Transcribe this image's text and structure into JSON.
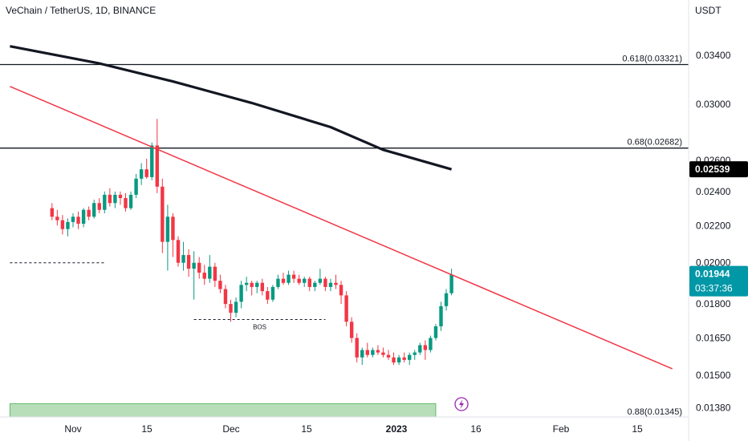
{
  "header": {
    "symbol_title": "VeChain / TetherUS, 1D, BINANCE",
    "currency": "USDT"
  },
  "colors": {
    "up": "#089981",
    "down": "#f23645",
    "trendline": "#f23645",
    "moving_average": "#131722",
    "horizontal_lines": "#131722",
    "demand_zone": "#a5d6a7",
    "last_price_tag": "#0097a7",
    "ma_tag": "#000000",
    "axis_text": "#131722"
  },
  "icons": {
    "event_marker": "lightning-icon"
  },
  "chart_data": {
    "type": "candlestick",
    "title": "VeChain / TetherUS, 1D, BINANCE",
    "y_axis": {
      "label": "USDT",
      "scale": "log",
      "range": [
        0.0134,
        0.0371
      ],
      "tick_labels": [
        "0.03400",
        "0.03000",
        "0.02600",
        "0.02400",
        "0.02200",
        "0.02000",
        "0.01800",
        "0.01650",
        "0.01500",
        "0.01380"
      ]
    },
    "x_axis": {
      "tick_labels": [
        "Nov",
        "15",
        "Dec",
        "15",
        "2023",
        "16",
        "Feb",
        "15"
      ]
    },
    "dates": [
      "2022-10-28",
      "2022-10-29",
      "2022-10-30",
      "2022-10-31",
      "2022-11-01",
      "2022-11-02",
      "2022-11-03",
      "2022-11-04",
      "2022-11-05",
      "2022-11-06",
      "2022-11-07",
      "2022-11-08",
      "2022-11-09",
      "2022-11-10",
      "2022-11-11",
      "2022-11-12",
      "2022-11-13",
      "2022-11-14",
      "2022-11-15",
      "2022-11-16",
      "2022-11-17",
      "2022-11-18",
      "2022-11-19",
      "2022-11-20",
      "2022-11-21",
      "2022-11-22",
      "2022-11-23",
      "2022-11-24",
      "2022-11-25",
      "2022-11-26",
      "2022-11-27",
      "2022-11-28",
      "2022-11-29",
      "2022-11-30",
      "2022-12-01",
      "2022-12-02",
      "2022-12-03",
      "2022-12-04",
      "2022-12-05",
      "2022-12-06",
      "2022-12-07",
      "2022-12-08",
      "2022-12-09",
      "2022-12-10",
      "2022-12-11",
      "2022-12-12",
      "2022-12-13",
      "2022-12-14",
      "2022-12-15",
      "2022-12-16",
      "2022-12-17",
      "2022-12-18",
      "2022-12-19",
      "2022-12-20",
      "2022-12-21",
      "2022-12-22",
      "2022-12-23",
      "2022-12-24",
      "2022-12-25",
      "2022-12-26",
      "2022-12-27",
      "2022-12-28",
      "2022-12-29",
      "2022-12-30",
      "2022-12-31",
      "2023-01-01",
      "2023-01-02",
      "2023-01-03",
      "2023-01-04",
      "2023-01-05",
      "2023-01-06",
      "2023-01-07",
      "2023-01-08",
      "2023-01-09",
      "2023-01-10",
      "2023-01-11",
      "2023-01-12"
    ],
    "candles": [
      [
        0.023,
        0.0233,
        0.0223,
        0.0225
      ],
      [
        0.0225,
        0.0229,
        0.022,
        0.0223
      ],
      [
        0.0223,
        0.0226,
        0.0215,
        0.0218
      ],
      [
        0.0218,
        0.0224,
        0.0214,
        0.0222
      ],
      [
        0.0222,
        0.0227,
        0.0219,
        0.0225
      ],
      [
        0.0225,
        0.0228,
        0.0218,
        0.0221
      ],
      [
        0.0221,
        0.023,
        0.0219,
        0.0229
      ],
      [
        0.0229,
        0.0231,
        0.0223,
        0.0225
      ],
      [
        0.0225,
        0.0235,
        0.0224,
        0.0233
      ],
      [
        0.0233,
        0.0236,
        0.0227,
        0.0229
      ],
      [
        0.0229,
        0.024,
        0.0227,
        0.0238
      ],
      [
        0.0238,
        0.0242,
        0.0231,
        0.0233
      ],
      [
        0.0233,
        0.024,
        0.023,
        0.0238
      ],
      [
        0.0238,
        0.024,
        0.0232,
        0.0236
      ],
      [
        0.0236,
        0.0239,
        0.0228,
        0.023
      ],
      [
        0.023,
        0.024,
        0.0229,
        0.0238
      ],
      [
        0.0238,
        0.0251,
        0.0236,
        0.0248
      ],
      [
        0.0248,
        0.0258,
        0.0244,
        0.0254
      ],
      [
        0.0254,
        0.0261,
        0.0248,
        0.0249
      ],
      [
        0.0249,
        0.0272,
        0.0247,
        0.027
      ],
      [
        0.027,
        0.0289,
        0.0239,
        0.0243
      ],
      [
        0.0243,
        0.0248,
        0.0205,
        0.0211
      ],
      [
        0.0211,
        0.0232,
        0.0196,
        0.0225
      ],
      [
        0.0225,
        0.0227,
        0.0203,
        0.0212
      ],
      [
        0.0212,
        0.0214,
        0.0198,
        0.02
      ],
      [
        0.02,
        0.0211,
        0.0196,
        0.0204
      ],
      [
        0.0204,
        0.0207,
        0.0193,
        0.0197
      ],
      [
        0.0197,
        0.0206,
        0.0182,
        0.02
      ],
      [
        0.02,
        0.0203,
        0.0192,
        0.0195
      ],
      [
        0.0195,
        0.0199,
        0.0189,
        0.0192
      ],
      [
        0.0192,
        0.0204,
        0.019,
        0.0198
      ],
      [
        0.0198,
        0.02,
        0.0188,
        0.0191
      ],
      [
        0.0191,
        0.0194,
        0.0185,
        0.0187
      ],
      [
        0.0187,
        0.0189,
        0.0178,
        0.018
      ],
      [
        0.018,
        0.0182,
        0.0172,
        0.0176
      ],
      [
        0.0176,
        0.0183,
        0.0174,
        0.0181
      ],
      [
        0.0181,
        0.0191,
        0.0178,
        0.0189
      ],
      [
        0.0189,
        0.0193,
        0.0186,
        0.019
      ],
      [
        0.019,
        0.0191,
        0.0184,
        0.0188
      ],
      [
        0.0188,
        0.0191,
        0.0185,
        0.019
      ],
      [
        0.019,
        0.0192,
        0.0184,
        0.0186
      ],
      [
        0.0186,
        0.0188,
        0.018,
        0.0182
      ],
      [
        0.0182,
        0.0189,
        0.0181,
        0.0188
      ],
      [
        0.0188,
        0.0194,
        0.0187,
        0.0192
      ],
      [
        0.0192,
        0.0195,
        0.0189,
        0.019
      ],
      [
        0.019,
        0.0196,
        0.0189,
        0.0194
      ],
      [
        0.0194,
        0.0196,
        0.019,
        0.0192
      ],
      [
        0.0192,
        0.0194,
        0.0189,
        0.019
      ],
      [
        0.019,
        0.0193,
        0.0188,
        0.0192
      ],
      [
        0.0192,
        0.0193,
        0.0186,
        0.0188
      ],
      [
        0.0188,
        0.0191,
        0.0186,
        0.019
      ],
      [
        0.019,
        0.0197,
        0.0189,
        0.0192
      ],
      [
        0.0192,
        0.0193,
        0.0186,
        0.0188
      ],
      [
        0.0188,
        0.0192,
        0.0186,
        0.019
      ],
      [
        0.019,
        0.0194,
        0.0187,
        0.0189
      ],
      [
        0.0189,
        0.0191,
        0.018,
        0.0184
      ],
      [
        0.0184,
        0.0186,
        0.017,
        0.0172
      ],
      [
        0.0172,
        0.0174,
        0.0163,
        0.0165
      ],
      [
        0.0165,
        0.0167,
        0.0155,
        0.0157
      ],
      [
        0.0157,
        0.0161,
        0.0154,
        0.016
      ],
      [
        0.016,
        0.0163,
        0.0157,
        0.0158
      ],
      [
        0.0158,
        0.0161,
        0.0157,
        0.016
      ],
      [
        0.016,
        0.0162,
        0.0158,
        0.0159
      ],
      [
        0.0159,
        0.0161,
        0.0157,
        0.0158
      ],
      [
        0.0158,
        0.016,
        0.0156,
        0.0157
      ],
      [
        0.0157,
        0.0159,
        0.0154,
        0.0155
      ],
      [
        0.0155,
        0.0158,
        0.0154,
        0.0157
      ],
      [
        0.0157,
        0.0159,
        0.0155,
        0.0156
      ],
      [
        0.0156,
        0.0159,
        0.0154,
        0.0158
      ],
      [
        0.0158,
        0.016,
        0.0156,
        0.0159
      ],
      [
        0.0159,
        0.0163,
        0.0158,
        0.0162
      ],
      [
        0.0162,
        0.0164,
        0.0156,
        0.016
      ],
      [
        0.016,
        0.0166,
        0.0159,
        0.0165
      ],
      [
        0.0165,
        0.0171,
        0.0164,
        0.017
      ],
      [
        0.017,
        0.0181,
        0.0168,
        0.0179
      ],
      [
        0.0179,
        0.0187,
        0.0177,
        0.0185
      ],
      [
        0.0185,
        0.0197,
        0.0184,
        0.0194
      ]
    ],
    "moving_average": {
      "dates": [
        "2022-10-20",
        "2022-11-06",
        "2022-11-20",
        "2022-12-05",
        "2022-12-20",
        "2022-12-30",
        "2023-01-12"
      ],
      "values": [
        0.0348,
        0.0333,
        0.0318,
        0.0301,
        0.0283,
        0.0267,
        0.0254
      ]
    },
    "trendline": {
      "dates": [
        "2022-10-20",
        "2023-02-23"
      ],
      "values": [
        0.0314,
        0.01525
      ]
    },
    "horizontal_levels": [
      {
        "label": "0.618(0.03321)",
        "value": 0.03321
      },
      {
        "label": "0.68(0.02682)",
        "value": 0.02682
      },
      {
        "label": "0.88(0.01345)",
        "value": 0.01345
      }
    ],
    "bos": {
      "label": "BOS",
      "value": 0.0173,
      "from": "2022-11-24",
      "to": "2022-12-19"
    },
    "dashed_level": {
      "value": 0.02,
      "from": "2022-10-20",
      "to": "2022-11-07"
    },
    "demand_zone": {
      "from": "2022-10-20",
      "to": "2023-01-09",
      "low": 0.0134,
      "high": 0.01395
    },
    "price_tags": {
      "moving_average": "0.02539",
      "last_price": "0.01944",
      "countdown": "03:37:36"
    }
  }
}
